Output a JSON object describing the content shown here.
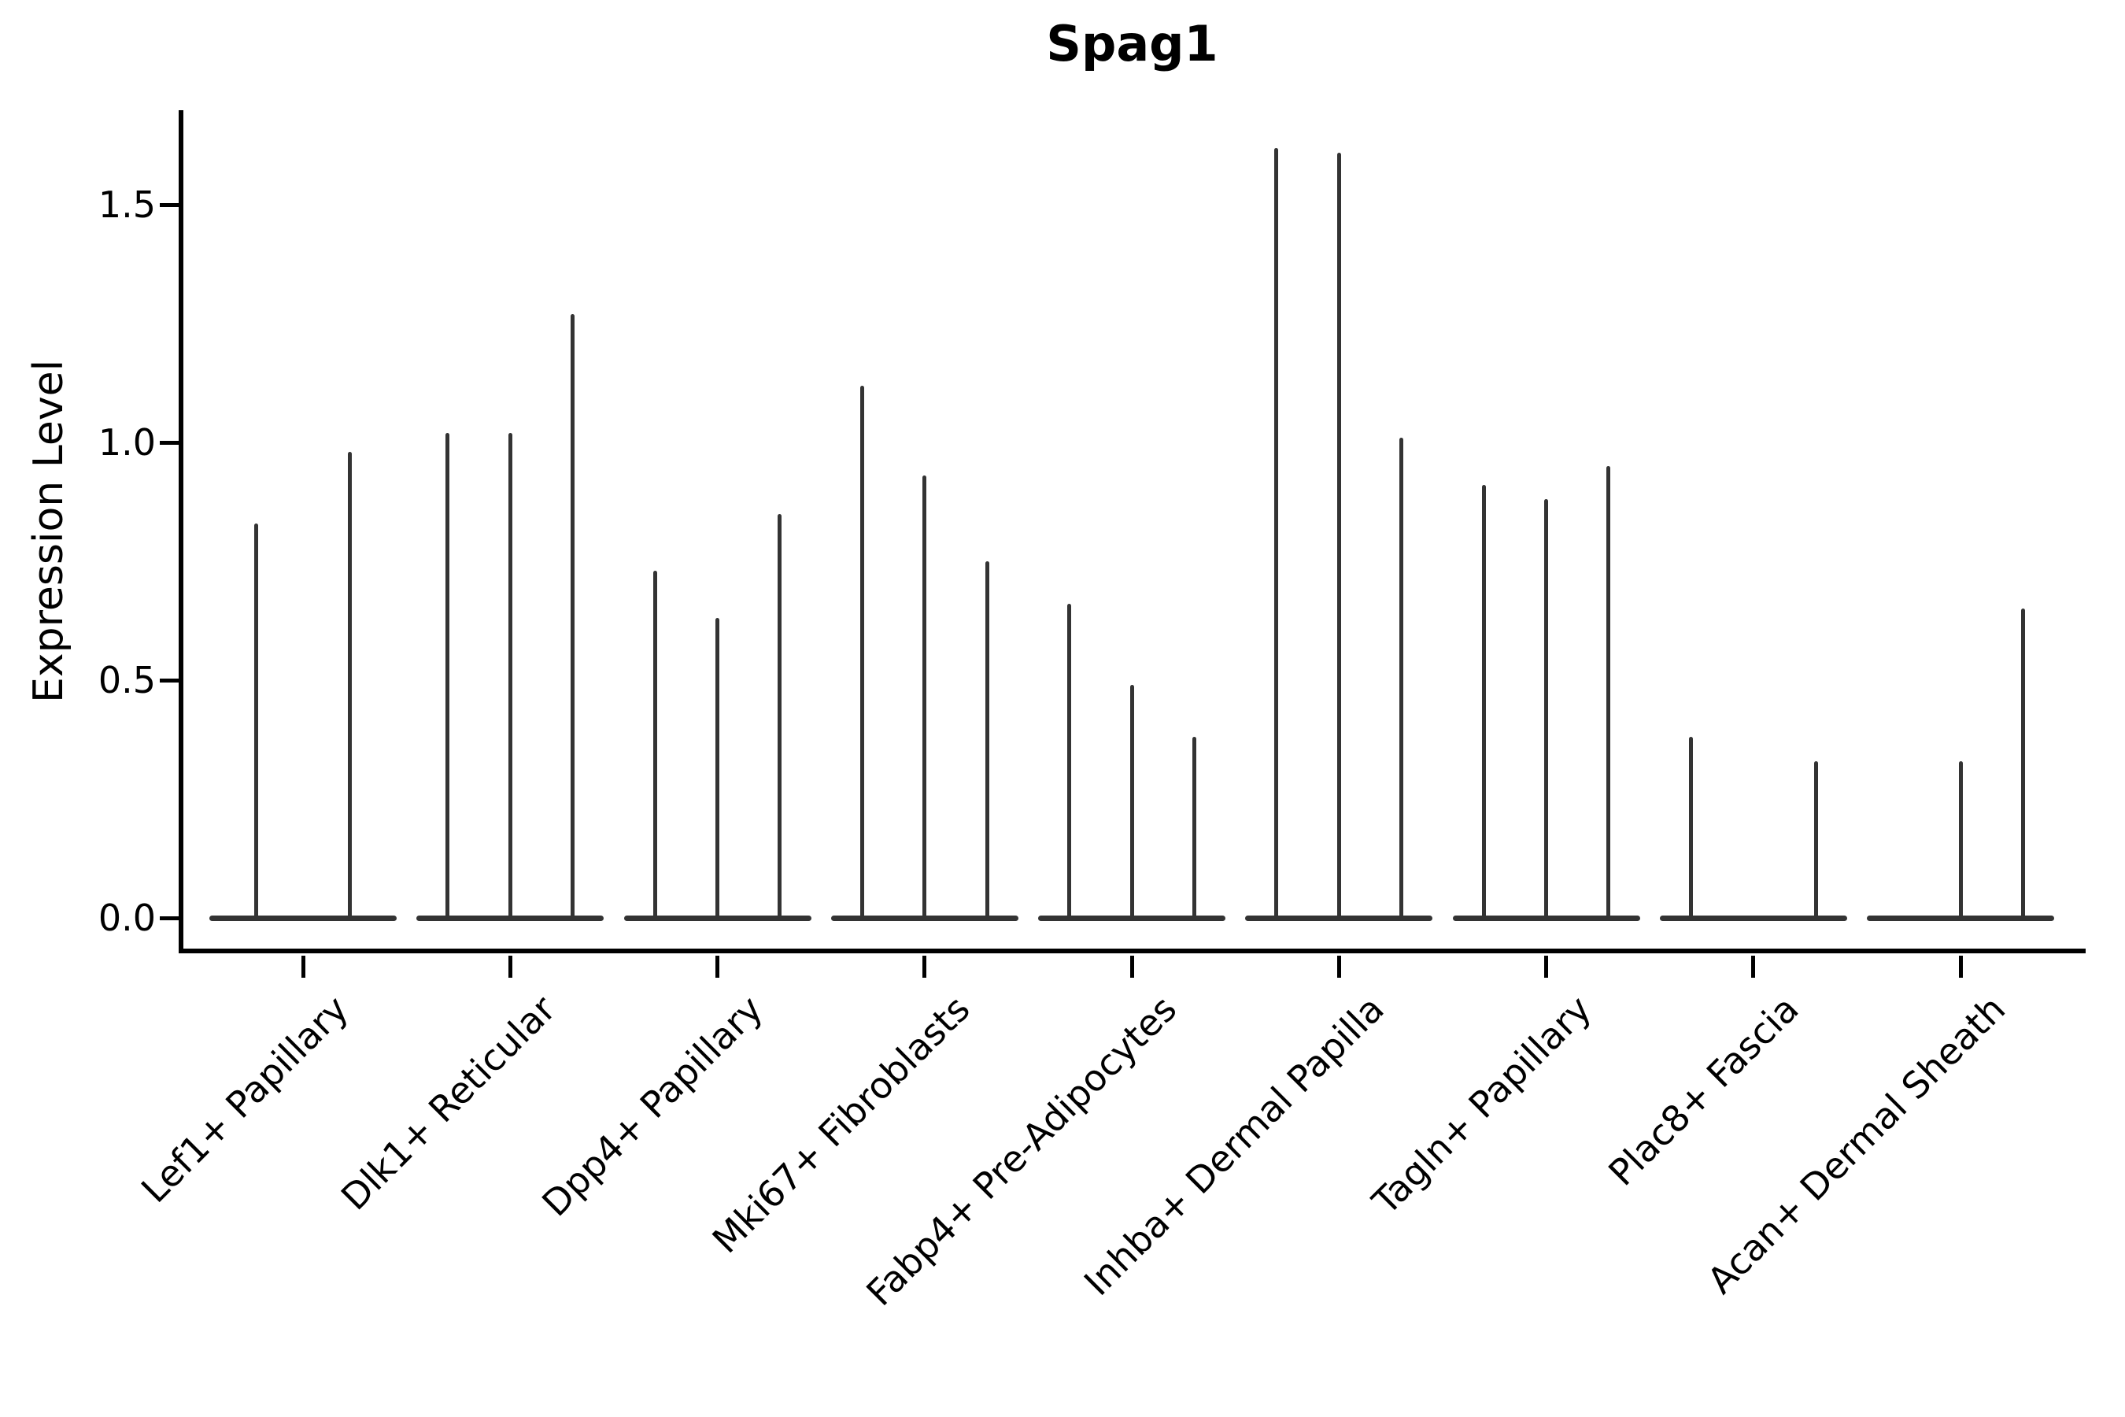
{
  "chart_data": {
    "type": "violin",
    "title": "Spag1",
    "ylabel": "Expression Level",
    "xlabel": "",
    "yticks": [
      0.0,
      0.5,
      1.0,
      1.5
    ],
    "ytick_labels": [
      "0.0",
      "0.5",
      "1.0",
      "1.5"
    ],
    "ylim": [
      -0.07,
      1.7
    ],
    "grid": false,
    "legend": "none",
    "categories": [
      "Lef1+ Papillary",
      "Dlk1+ Reticular",
      "Dpp4+ Papillary",
      "Mki67+ Fibroblasts",
      "Fabp4+ Pre-Adipocytes",
      "Inhba+ Dermal Papilla",
      "Tagln+ Papillary",
      "Plac8+ Fascia",
      "Acan+ Dermal Sheath"
    ],
    "groups": [
      {
        "category": "Lef1+ Papillary",
        "violin_maxima": [
          0.83,
          0.98
        ]
      },
      {
        "category": "Dlk1+ Reticular",
        "violin_maxima": [
          1.02,
          1.02,
          1.27
        ]
      },
      {
        "category": "Dpp4+ Papillary",
        "violin_maxima": [
          0.73,
          0.63,
          0.85
        ]
      },
      {
        "category": "Mki67+ Fibroblasts",
        "violin_maxima": [
          1.12,
          0.93,
          0.75
        ]
      },
      {
        "category": "Fabp4+ Pre-Adipocytes",
        "violin_maxima": [
          0.66,
          0.49,
          0.38
        ]
      },
      {
        "category": "Inhba+ Dermal Papilla",
        "violin_maxima": [
          1.62,
          1.61,
          1.01
        ]
      },
      {
        "category": "Tagln+ Papillary",
        "violin_maxima": [
          0.91,
          0.88,
          0.95
        ]
      },
      {
        "category": "Plac8+ Fascia",
        "violin_maxima": [
          0.38,
          0.0,
          0.33
        ]
      },
      {
        "category": "Acan+ Dermal Sheath",
        "violin_maxima": [
          0.0,
          0.33,
          0.65
        ]
      }
    ],
    "description": "Violin plot of gene expression; each cell-type group contains thin violins whose density is concentrated at 0 (flat base line) with a narrow spike up to the maximum expression value."
  },
  "colors": {
    "violin": "#333333",
    "axis": "#000000",
    "background": "#ffffff"
  }
}
